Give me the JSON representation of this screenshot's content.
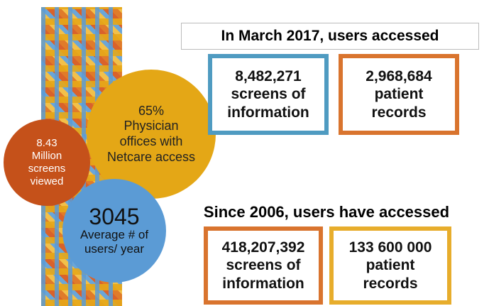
{
  "circles": [
    {
      "value": "65%",
      "label": "Physician offices with Netcare access"
    },
    {
      "value": "8.43",
      "label": "Million screens viewed"
    },
    {
      "value": "3045",
      "label": "Average # of users/ year"
    }
  ],
  "march_2017": {
    "heading": "In March 2017, users accessed",
    "boxes": [
      {
        "value": "8,482,271",
        "label": "screens of information"
      },
      {
        "value": "2,968,684",
        "label": "patient records"
      }
    ]
  },
  "since_2006": {
    "heading": "Since 2006, users have accessed",
    "boxes": [
      {
        "value": "418,207,392",
        "label": "screens of information"
      },
      {
        "value": "133 600 000",
        "label": "patient records"
      }
    ]
  }
}
